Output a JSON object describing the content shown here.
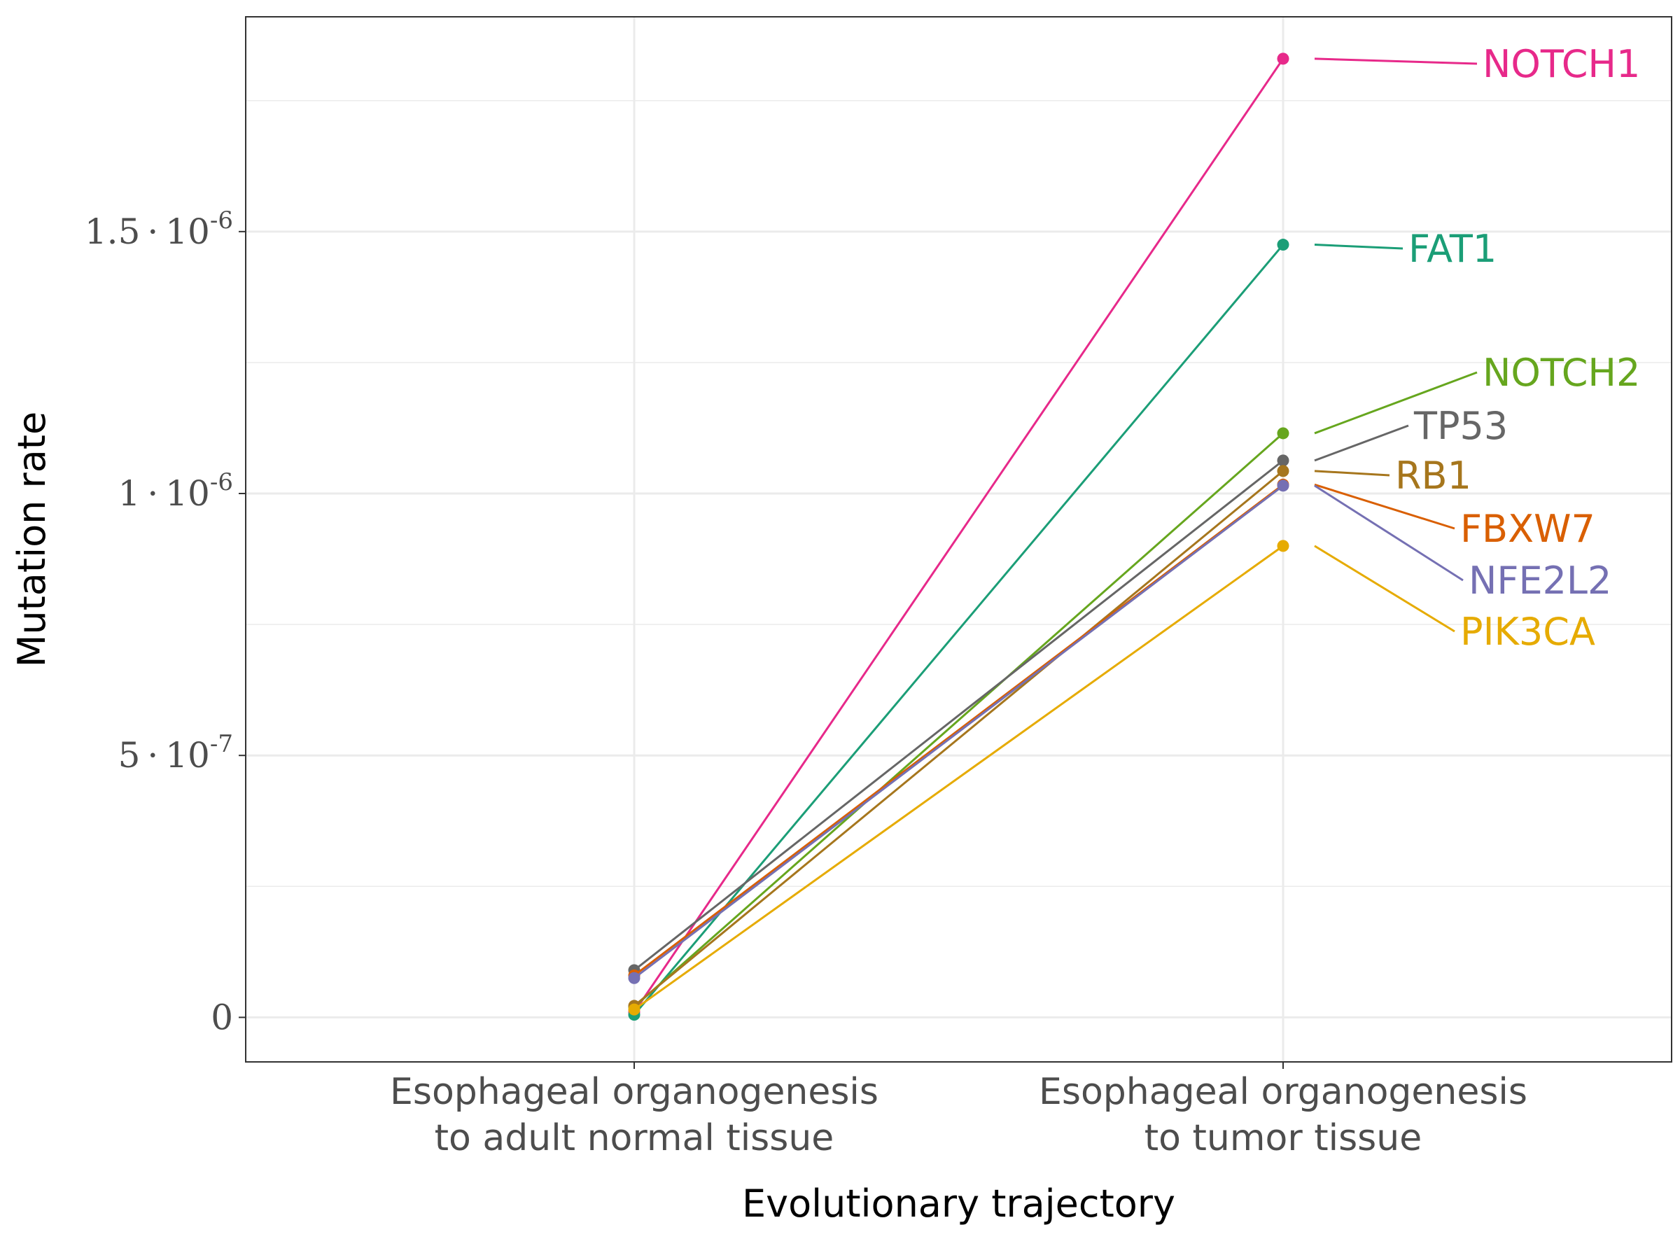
{
  "chart_data": {
    "type": "line",
    "xlabel": "Evolutionary trajectory",
    "ylabel": "Mutation rate",
    "categories": [
      [
        "Esophageal organogenesis",
        "to adult normal tissue"
      ],
      [
        "Esophageal organogenesis",
        "to tumor tissue"
      ]
    ],
    "ylim": [
      -8.5e-08,
      1.91e-06
    ],
    "y_major_ticks": [
      {
        "value": 0,
        "mantissa": "0",
        "exponent": ""
      },
      {
        "value": 5e-07,
        "mantissa": "5",
        "exponent": "-7"
      },
      {
        "value": 1e-06,
        "mantissa": "1",
        "exponent": "-6"
      },
      {
        "value": 1.5e-06,
        "mantissa": "1.5",
        "exponent": "-6"
      }
    ],
    "y_minor_gridlines": [
      2.5e-07,
      7.5e-07,
      1.25e-06,
      1.75e-06
    ],
    "grid": true,
    "legend": "direct labels at right end of lines",
    "series": [
      {
        "name": "NOTCH1",
        "color": "#E7298A",
        "values": [
          1e-08,
          1.83e-06
        ]
      },
      {
        "name": "FAT1",
        "color": "#1B9E77",
        "values": [
          5e-09,
          1.475e-06
        ]
      },
      {
        "name": "NOTCH2",
        "color": "#66A61E",
        "values": [
          2e-08,
          1.115e-06
        ]
      },
      {
        "name": "TP53",
        "color": "#666666",
        "values": [
          9e-08,
          1.063e-06
        ]
      },
      {
        "name": "RB1",
        "color": "#A6761D",
        "values": [
          2.2e-08,
          1.043e-06
        ]
      },
      {
        "name": "FBXW7",
        "color": "#D95F02",
        "values": [
          8e-08,
          1.017e-06
        ]
      },
      {
        "name": "NFE2L2",
        "color": "#7570B3",
        "values": [
          7.5e-08,
          1.015e-06
        ]
      },
      {
        "name": "PIK3CA",
        "color": "#E6AB02",
        "values": [
          1.5e-08,
          9e-07
        ]
      }
    ]
  }
}
